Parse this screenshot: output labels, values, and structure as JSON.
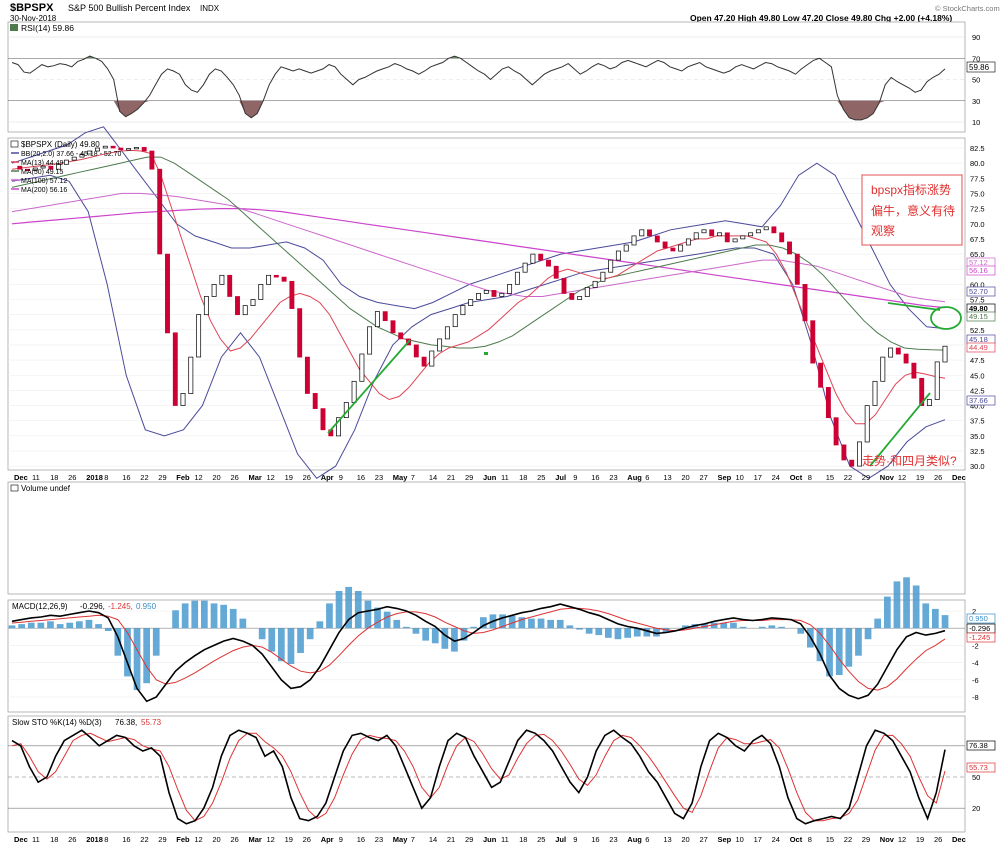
{
  "header": {
    "symbol": "$BPSPX",
    "name": "S&P 500 Bullish Percent Index",
    "exchange": "INDX",
    "date": "30-Nov-2018",
    "ohlc": "Open 47.20  High 49.80  Low 47.20  Close 49.80  Chg +2.00 (+4.18%)",
    "copyright": "© StockCharts.com"
  },
  "x_labels": [
    "Dec",
    "11",
    "18",
    "26",
    "2018",
    "8",
    "16",
    "22",
    "29",
    "Feb",
    "12",
    "20",
    "26",
    "Mar",
    "12",
    "19",
    "26",
    "Apr",
    "9",
    "16",
    "23",
    "May",
    "7",
    "14",
    "21",
    "29",
    "Jun",
    "11",
    "18",
    "25",
    "Jul",
    "9",
    "16",
    "23",
    "Aug",
    "6",
    "13",
    "20",
    "27",
    "Sep",
    "10",
    "17",
    "24",
    "Oct",
    "8",
    "15",
    "22",
    "29",
    "Nov",
    "12",
    "19",
    "26",
    "Dec"
  ],
  "rsi": {
    "legend": "RSI(14) 59.86",
    "ticks": [
      "90",
      "70",
      "50",
      "30",
      "10"
    ],
    "last": "59.86",
    "values": [
      66,
      64,
      57,
      56,
      60,
      64,
      62,
      63,
      65,
      64,
      62,
      67,
      69,
      72,
      70,
      67,
      60,
      50,
      20,
      15,
      18,
      22,
      28,
      35,
      45,
      55,
      60,
      58,
      55,
      45,
      40,
      38,
      45,
      55,
      60,
      58,
      52,
      45,
      35,
      18,
      14,
      18,
      30,
      45,
      55,
      62,
      60,
      58,
      60,
      58,
      56,
      58,
      60,
      64,
      62,
      55,
      50,
      45,
      50,
      52,
      55,
      58,
      60,
      62,
      65,
      63,
      60,
      58,
      55,
      58,
      62,
      64,
      66,
      70,
      72,
      70,
      66,
      62,
      58,
      55,
      50,
      55,
      60,
      62,
      58,
      55,
      50,
      45,
      50,
      55,
      58,
      60,
      62,
      65,
      60,
      55,
      58,
      62,
      65,
      63,
      60,
      62,
      66,
      68,
      66,
      64,
      62,
      65,
      68,
      66,
      62,
      60,
      58,
      62,
      64,
      66,
      62,
      60,
      58,
      56,
      58,
      62,
      64,
      62,
      60,
      63,
      66,
      65,
      62,
      60,
      58,
      55,
      60,
      64,
      68,
      70,
      66,
      62,
      35,
      22,
      14,
      12,
      12,
      14,
      18,
      28,
      45,
      52,
      48,
      45,
      42,
      38,
      40,
      48,
      52,
      55,
      60
    ]
  },
  "main": {
    "legend": [
      "$BPSPX (Daily) 49.80",
      "BB(20,2.0) 37.66 - 45.18 - 52.70",
      "MA(13) 44.49",
      "MA(50) 49.15",
      "MA(100) 57.12",
      "MA(200) 56.16"
    ],
    "ticks": [
      "82.5",
      "80.0",
      "77.5",
      "75.0",
      "72.5",
      "70.0",
      "67.5",
      "65.0",
      "62.5",
      "60.0",
      "57.5",
      "55.0",
      "52.5",
      "50.0",
      "47.5",
      "45.0",
      "42.5",
      "40.0",
      "37.5",
      "35.0",
      "32.5",
      "30.0"
    ],
    "price_tags": [
      "57.12",
      "56.16",
      "52.70",
      "49.80",
      "49.15",
      "45.18",
      "44.49",
      "37.66"
    ],
    "values": [
      79.5,
      79.0,
      78.8,
      79.2,
      79.5,
      79.0,
      79.8,
      80.5,
      81.0,
      81.5,
      82.0,
      82.5,
      82.8,
      82.5,
      82.2,
      82.4,
      82.6,
      82.0,
      79.0,
      65.0,
      52.0,
      40.0,
      42.0,
      48.0,
      55.0,
      58.0,
      60.0,
      61.5,
      58.0,
      55.0,
      56.5,
      57.5,
      60.0,
      61.5,
      61.2,
      60.5,
      56.0,
      48.0,
      42.0,
      39.5,
      36.0,
      35.0,
      38.0,
      40.5,
      44.0,
      48.5,
      53.0,
      55.5,
      54.0,
      52.0,
      51.0,
      50.0,
      48.0,
      46.5,
      49.0,
      51.0,
      53.0,
      55.0,
      56.5,
      57.5,
      58.5,
      59.0,
      58.0,
      58.5,
      60.0,
      62.0,
      63.5,
      65.0,
      64.0,
      63.0,
      61.0,
      58.5,
      57.5,
      58.0,
      59.5,
      60.5,
      62.0,
      64.0,
      65.5,
      66.5,
      68.0,
      69.0,
      68.0,
      67.0,
      66.0,
      65.5,
      66.5,
      67.5,
      68.5,
      69.0,
      68.0,
      68.5,
      67.0,
      67.5,
      68.0,
      68.5,
      69.0,
      69.5,
      68.5,
      67.0,
      65.0,
      60.0,
      54.0,
      47.0,
      43.0,
      38.0,
      33.5,
      31.0,
      30.0,
      34.0,
      40.0,
      44.0,
      48.0,
      49.5,
      48.5,
      47.0,
      44.5,
      40.0,
      41.0,
      47.2,
      49.8
    ],
    "ma13": [
      79.0,
      79.2,
      79.4,
      79.6,
      79.8,
      80.0,
      80.3,
      80.6,
      81.0,
      81.4,
      81.7,
      82.0,
      82.1,
      82.0,
      81.6,
      78.0,
      73.0,
      68.0,
      63.0,
      58.0,
      54.0,
      51.0,
      49.0,
      49.5,
      51.0,
      53.0,
      55.0,
      57.0,
      58.0,
      58.5,
      58.0,
      57.0,
      55.0,
      52.0,
      49.0,
      46.0,
      44.0,
      42.0,
      41.0,
      41.5,
      43.0,
      45.0,
      47.0,
      48.5,
      49.5,
      50.0,
      50.5,
      51.5,
      52.5,
      54.0,
      55.5,
      57.0,
      58.0,
      59.5,
      61.0,
      62.0,
      62.5,
      62.0,
      61.5,
      61.0,
      61.0,
      61.5,
      62.5,
      63.5,
      64.5,
      65.5,
      66.0,
      66.5,
      67.0,
      67.5,
      67.5,
      68.0,
      68.0,
      68.0,
      68.0,
      67.5,
      67.0,
      65.0,
      62.0,
      58.0,
      54.0,
      50.0,
      46.0,
      42.0,
      39.0,
      37.0,
      37.0,
      38.5,
      41.0,
      43.5,
      45.0,
      45.5,
      45.2,
      44.8,
      44.5
    ],
    "ma50": [
      76.0,
      76.5,
      77.0,
      77.5,
      78.0,
      78.5,
      79.0,
      79.5,
      80.0,
      80.5,
      81.0,
      81.0,
      80.0,
      78.5,
      77.0,
      75.5,
      74.0,
      72.0,
      70.0,
      68.0,
      66.0,
      64.0,
      62.0,
      60.0,
      58.0,
      56.0,
      54.5,
      53.0,
      52.0,
      51.0,
      50.5,
      50.0,
      49.8,
      49.5,
      49.5,
      49.8,
      50.5,
      51.5,
      53.0,
      54.5,
      56.0,
      57.5,
      59.0,
      60.0,
      61.0,
      61.5,
      62.0,
      62.5,
      63.0,
      63.5,
      64.0,
      64.5,
      65.0,
      65.5,
      66.0,
      66.5,
      66.5,
      66.0,
      65.0,
      63.5,
      61.5,
      59.0,
      56.5,
      54.0,
      52.0,
      50.5,
      49.5,
      49.3,
      49.2,
      49.15
    ],
    "ma100": [
      72.0,
      72.5,
      73.0,
      73.5,
      74.0,
      74.5,
      75.0,
      75.0,
      74.8,
      74.5,
      74.0,
      73.5,
      73.0,
      72.0,
      71.0,
      70.0,
      69.0,
      68.0,
      67.0,
      66.0,
      65.0,
      64.0,
      63.0,
      62.0,
      61.0,
      60.0,
      59.0,
      58.5,
      58.0,
      58.0,
      58.5,
      59.0,
      59.5,
      60.0,
      60.5,
      61.0,
      61.5,
      62.0,
      62.5,
      63.0,
      63.5,
      64.0,
      64.0,
      63.5,
      63.0,
      62.0,
      61.0,
      60.0,
      59.0,
      58.0,
      57.5,
      57.12
    ],
    "ma200": [
      70.0,
      70.3,
      70.6,
      70.9,
      71.2,
      71.5,
      71.8,
      72.0,
      72.2,
      72.4,
      72.5,
      72.5,
      72.3,
      72.0,
      71.5,
      71.0,
      70.5,
      70.0,
      69.5,
      69.0,
      68.5,
      68.0,
      67.5,
      67.0,
      66.5,
      66.0,
      65.5,
      65.0,
      64.5,
      64.0,
      63.5,
      63.0,
      62.5,
      62.0,
      61.5,
      61.0,
      60.5,
      60.0,
      59.5,
      59.0,
      58.5,
      58.0,
      57.5,
      57.0,
      56.5,
      56.16
    ],
    "bb_upper": [
      80.0,
      81.0,
      82.0,
      83.0,
      85.0,
      86.0,
      82.0,
      78.0,
      74.0,
      70.0,
      68.0,
      67.0,
      66.0,
      66.0,
      66.5,
      67.0,
      66.0,
      64.0,
      60.0,
      58.0,
      57.0,
      56.5,
      56.0,
      57.0,
      58.5,
      60.0,
      61.0,
      62.0,
      63.0,
      64.0,
      65.0,
      65.5,
      66.0,
      66.5,
      67.0,
      68.0,
      69.0,
      69.5,
      70.0,
      70.5,
      70.0,
      69.5,
      73.0,
      78.0,
      80.0,
      78.0,
      72.0,
      66.0,
      60.0,
      56.0,
      53.0,
      52.7
    ],
    "bb_lower": [
      77.0,
      77.5,
      78.0,
      77.0,
      72.0,
      60.0,
      45.0,
      36.0,
      35.0,
      36.0,
      40.0,
      48.0,
      52.0,
      48.0,
      40.0,
      32.0,
      28.0,
      30.0,
      36.0,
      44.0,
      50.0,
      53.0,
      55.0,
      56.0,
      57.0,
      57.5,
      58.0,
      59.0,
      60.0,
      61.0,
      62.0,
      62.5,
      63.0,
      63.5,
      64.0,
      64.5,
      65.0,
      65.5,
      66.0,
      66.0,
      65.0,
      60.0,
      50.0,
      38.0,
      30.0,
      28.0,
      30.0,
      34.0,
      36.5,
      37.66
    ],
    "trend_lines_note": "green trend lines",
    "annotation_box": [
      "bpspx指标涨势",
      "偏牛，意义有待",
      "观察"
    ],
    "annotation_bottom": "走势·和四月类似?"
  },
  "volume": {
    "legend": "Volume undef"
  },
  "macd": {
    "legend_prefix": "MACD(12,26,9)",
    "legend_macd": "-0.296,",
    "legend_signal": "-1.245,",
    "legend_hist": "0.950",
    "ticks": [
      "2",
      "0",
      "-2",
      "-4",
      "-6",
      "-8"
    ],
    "tags": [
      "0.950",
      "-0.296",
      "-1.245"
    ],
    "macd_values": [
      0.8,
      1.0,
      1.2,
      1.3,
      1.5,
      1.4,
      1.6,
      1.8,
      2.0,
      1.8,
      1.2,
      -1.0,
      -4.0,
      -7.0,
      -8.5,
      -8.0,
      -6.5,
      -5.0,
      -4.0,
      -3.2,
      -2.5,
      -2.0,
      -1.5,
      -1.2,
      -1.5,
      -2.0,
      -3.0,
      -4.5,
      -6.0,
      -7.0,
      -6.8,
      -6.0,
      -4.5,
      -2.5,
      -0.5,
      1.0,
      1.8,
      2.0,
      2.2,
      2.5,
      2.3,
      2.0,
      1.5,
      0.8,
      0.2,
      -0.8,
      -1.5,
      -1.2,
      -0.5,
      0.3,
      0.8,
      1.2,
      1.5,
      1.8,
      2.0,
      2.3,
      2.5,
      2.8,
      2.5,
      2.2,
      1.8,
      1.5,
      1.0,
      0.5,
      0.2,
      0.0,
      -0.3,
      -0.6,
      -0.5,
      -0.3,
      0.0,
      0.3,
      0.5,
      0.8,
      1.0,
      1.2,
      1.0,
      0.9,
      1.0,
      1.2,
      1.1,
      1.0,
      0.5,
      -1.0,
      -3.0,
      -5.5,
      -7.0,
      -7.8,
      -8.2,
      -7.8,
      -6.5,
      -4.5,
      -2.5,
      -1.0,
      -0.5,
      -0.8,
      -0.6,
      -0.296
    ],
    "signal_values": [
      0.6,
      0.7,
      0.8,
      0.9,
      1.0,
      1.1,
      1.2,
      1.3,
      1.4,
      1.5,
      1.4,
      1.0,
      -0.5,
      -2.5,
      -4.5,
      -6.0,
      -6.5,
      -6.3,
      -5.8,
      -5.2,
      -4.5,
      -3.8,
      -3.2,
      -2.6,
      -2.2,
      -2.0,
      -2.2,
      -2.8,
      -3.6,
      -4.4,
      -5.0,
      -5.2,
      -5.0,
      -4.3,
      -3.2,
      -2.0,
      -0.9,
      0.0,
      0.7,
      1.3,
      1.7,
      1.9,
      1.9,
      1.7,
      1.3,
      0.7,
      0.2,
      -0.3,
      -0.6,
      -0.5,
      -0.2,
      0.2,
      0.6,
      1.0,
      1.3,
      1.6,
      1.9,
      2.2,
      2.3,
      2.3,
      2.2,
      2.0,
      1.7,
      1.3,
      0.9,
      0.6,
      0.3,
      0.0,
      -0.2,
      -0.3,
      -0.2,
      0.0,
      0.2,
      0.4,
      0.6,
      0.8,
      0.9,
      0.9,
      0.9,
      1.0,
      1.0,
      1.0,
      0.9,
      0.4,
      -0.6,
      -2.0,
      -3.6,
      -5.0,
      -6.2,
      -7.0,
      -7.2,
      -6.8,
      -5.9,
      -4.7,
      -3.6,
      -2.6,
      -2.0,
      -1.245
    ]
  },
  "sto": {
    "legend_prefix": "Slow STO %K(14) %D(3)",
    "legend_k": "76.38,",
    "legend_d": "55.73",
    "ticks": [
      "80",
      "50",
      "20"
    ],
    "tags": [
      "76.38",
      "55.73"
    ],
    "k_values": [
      85,
      80,
      60,
      45,
      50,
      70,
      85,
      90,
      95,
      88,
      80,
      85,
      90,
      88,
      80,
      75,
      78,
      70,
      35,
      10,
      5,
      8,
      20,
      40,
      70,
      90,
      95,
      92,
      88,
      70,
      75,
      60,
      30,
      10,
      8,
      12,
      25,
      50,
      75,
      90,
      92,
      88,
      85,
      90,
      80,
      60,
      40,
      20,
      30,
      60,
      85,
      92,
      88,
      70,
      55,
      40,
      45,
      65,
      85,
      95,
      92,
      85,
      75,
      60,
      45,
      35,
      50,
      75,
      90,
      95,
      88,
      82,
      70,
      55,
      45,
      30,
      15,
      10,
      25,
      60,
      85,
      92,
      88,
      80,
      75,
      85,
      90,
      82,
      60,
      30,
      10,
      5,
      8,
      10,
      12,
      10,
      20,
      50,
      80,
      95,
      92,
      85,
      70,
      55,
      30,
      10,
      35,
      76.38
    ],
    "d_values": [
      80,
      82,
      70,
      55,
      48,
      55,
      70,
      85,
      90,
      92,
      88,
      84,
      86,
      88,
      86,
      80,
      77,
      75,
      60,
      38,
      18,
      8,
      12,
      25,
      45,
      68,
      85,
      92,
      92,
      84,
      78,
      70,
      55,
      35,
      18,
      10,
      15,
      30,
      52,
      72,
      86,
      90,
      88,
      87,
      85,
      75,
      60,
      40,
      30,
      40,
      62,
      80,
      88,
      84,
      72,
      58,
      48,
      52,
      68,
      82,
      90,
      91,
      85,
      75,
      62,
      48,
      42,
      52,
      70,
      85,
      90,
      88,
      80,
      70,
      58,
      45,
      32,
      20,
      16,
      32,
      56,
      78,
      88,
      86,
      82,
      82,
      84,
      86,
      78,
      58,
      35,
      16,
      8,
      8,
      10,
      11,
      15,
      28,
      52,
      76,
      90,
      90,
      82,
      70,
      50,
      32,
      25,
      55.73
    ]
  }
}
